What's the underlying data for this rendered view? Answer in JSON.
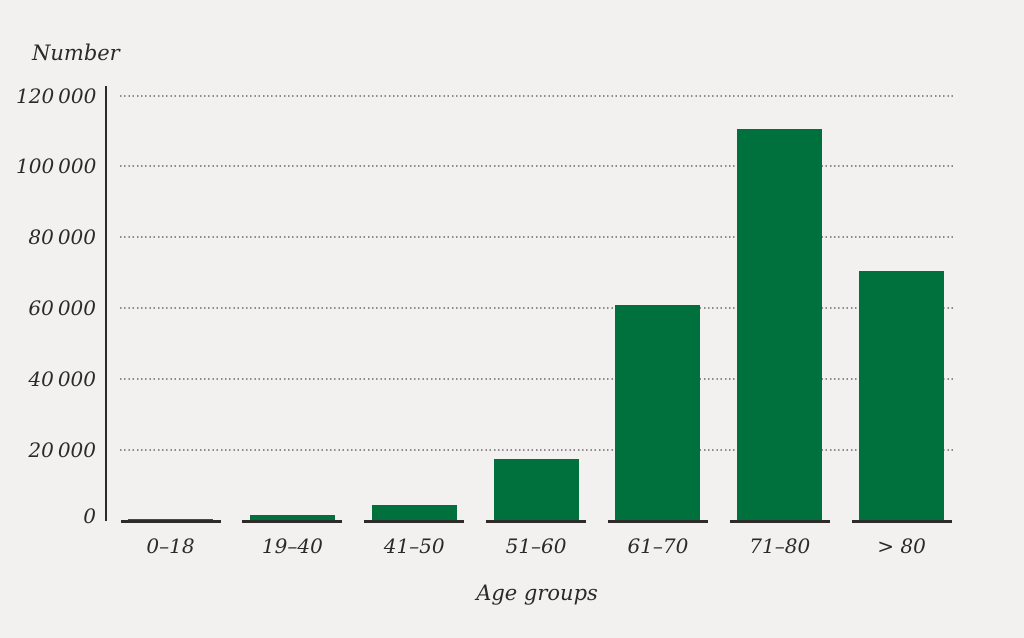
{
  "page": {
    "background_color": "#f3f1ef",
    "text_color": "#2b2a28"
  },
  "chart_data": {
    "type": "bar",
    "title": "",
    "ylabel": "Number",
    "xlabel": "Age groups",
    "categories": [
      "0–18",
      "19–40",
      "41–50",
      "51–60",
      "61–70",
      "71–80",
      "> 80"
    ],
    "values": [
      600,
      1700,
      4500,
      17500,
      61000,
      110500,
      70500
    ],
    "ylim": [
      0,
      120000
    ],
    "ytick_interval": 20000,
    "yticks": [
      "0",
      "20 000",
      "40 000",
      "60 000",
      "80 000",
      "100 000",
      "120 000"
    ],
    "grid": "horizontal-dotted",
    "legend": "none",
    "bar_color": "#00703c",
    "axis_color": "#2d2c2a",
    "gridline_color": "#8d8b89"
  }
}
